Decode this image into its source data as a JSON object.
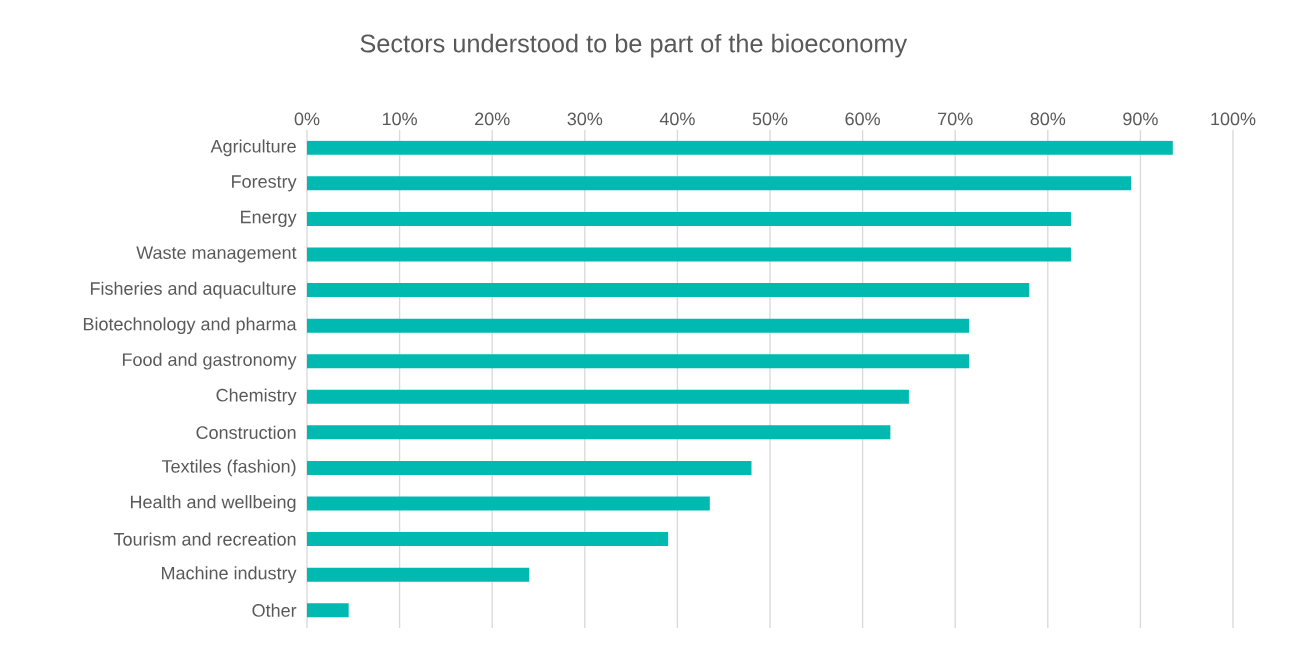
{
  "chart_data": {
    "type": "bar",
    "orientation": "horizontal",
    "title": "Sectors understood to be part of the bioeconomy",
    "categories": [
      "Agriculture",
      "Forestry",
      "Energy",
      "Waste management",
      "Fisheries and aquaculture",
      "Biotechnology and pharma",
      "Food and gastronomy",
      "Chemistry",
      "Construction",
      "Textiles (fashion)",
      "Health and wellbeing",
      "Tourism and recreation",
      "Machine industry",
      "Other"
    ],
    "values": [
      93.5,
      89,
      82.5,
      82.5,
      78,
      71.5,
      71.5,
      65,
      63,
      48,
      43.5,
      39,
      24,
      4.5
    ],
    "color": "#00b9b0",
    "xlim": [
      0,
      100
    ],
    "xticks": [
      {
        "value": 0,
        "label": "0%"
      },
      {
        "value": 10,
        "label": "10%"
      },
      {
        "value": 20,
        "label": "20%"
      },
      {
        "value": 30,
        "label": "30%"
      },
      {
        "value": 40,
        "label": "40%"
      },
      {
        "value": 50,
        "label": "50%"
      },
      {
        "value": 60,
        "label": "60%"
      },
      {
        "value": 70,
        "label": "70%"
      },
      {
        "value": 80,
        "label": "80%"
      },
      {
        "value": 90,
        "label": "90%"
      },
      {
        "value": 100,
        "label": "100%"
      }
    ],
    "grid": "x"
  }
}
